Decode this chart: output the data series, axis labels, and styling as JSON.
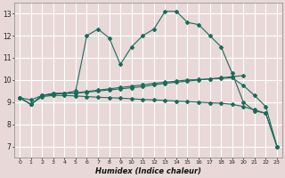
{
  "xlabel": "Humidex (Indice chaleur)",
  "xlim": [
    0,
    23
  ],
  "ylim": [
    6.5,
    13.5
  ],
  "xticks": [
    0,
    1,
    2,
    3,
    4,
    5,
    6,
    7,
    8,
    9,
    10,
    11,
    12,
    13,
    14,
    15,
    16,
    17,
    18,
    19,
    20,
    21,
    22,
    23
  ],
  "yticks": [
    7,
    8,
    9,
    10,
    11,
    12,
    13
  ],
  "bg_color": "#e8d8d8",
  "plot_bg_color": "#e8d8d8",
  "grid_color": "#ffffff",
  "line_color": "#1a6b5a",
  "line1_x": [
    0,
    1,
    2,
    3,
    4,
    5,
    6,
    7,
    8,
    9,
    10,
    11,
    12,
    13,
    14,
    15,
    16,
    17,
    18,
    19,
    20,
    21,
    22,
    23
  ],
  "line1_y": [
    9.2,
    8.9,
    9.3,
    9.4,
    9.4,
    9.5,
    12.0,
    12.3,
    11.9,
    10.7,
    11.5,
    12.0,
    12.3,
    13.1,
    13.1,
    12.6,
    12.5,
    12.0,
    11.5,
    10.3,
    9.0,
    8.6,
    8.5,
    7.0
  ],
  "line2_x": [
    0,
    1,
    2,
    3,
    4,
    5,
    6,
    7,
    8,
    9,
    10,
    11,
    12,
    13,
    14,
    15,
    16,
    17,
    18,
    19,
    20
  ],
  "line2_y": [
    9.2,
    9.1,
    9.3,
    9.35,
    9.4,
    9.4,
    9.45,
    9.5,
    9.55,
    9.6,
    9.65,
    9.7,
    9.78,
    9.85,
    9.9,
    9.95,
    10.0,
    10.05,
    10.1,
    10.15,
    10.2
  ],
  "line3_x": [
    0,
    1,
    2,
    3,
    4,
    5,
    6,
    7,
    8,
    9,
    10,
    11,
    12,
    13,
    14,
    15,
    16,
    17,
    18,
    19,
    20,
    21,
    22,
    23
  ],
  "line3_y": [
    9.2,
    8.9,
    9.25,
    9.3,
    9.3,
    9.28,
    9.25,
    9.22,
    9.2,
    9.18,
    9.15,
    9.12,
    9.1,
    9.08,
    9.05,
    9.02,
    9.0,
    8.97,
    8.95,
    8.9,
    8.8,
    8.65,
    8.5,
    7.0
  ],
  "line4_x": [
    0,
    1,
    2,
    3,
    4,
    5,
    6,
    7,
    8,
    9,
    10,
    11,
    12,
    13,
    14,
    15,
    16,
    17,
    18,
    19,
    20,
    21,
    22,
    23
  ],
  "line4_y": [
    9.2,
    8.9,
    9.3,
    9.38,
    9.4,
    9.42,
    9.48,
    9.54,
    9.6,
    9.66,
    9.72,
    9.78,
    9.85,
    9.9,
    9.95,
    10.0,
    10.02,
    10.05,
    10.07,
    10.1,
    9.75,
    9.3,
    8.8,
    7.0
  ]
}
